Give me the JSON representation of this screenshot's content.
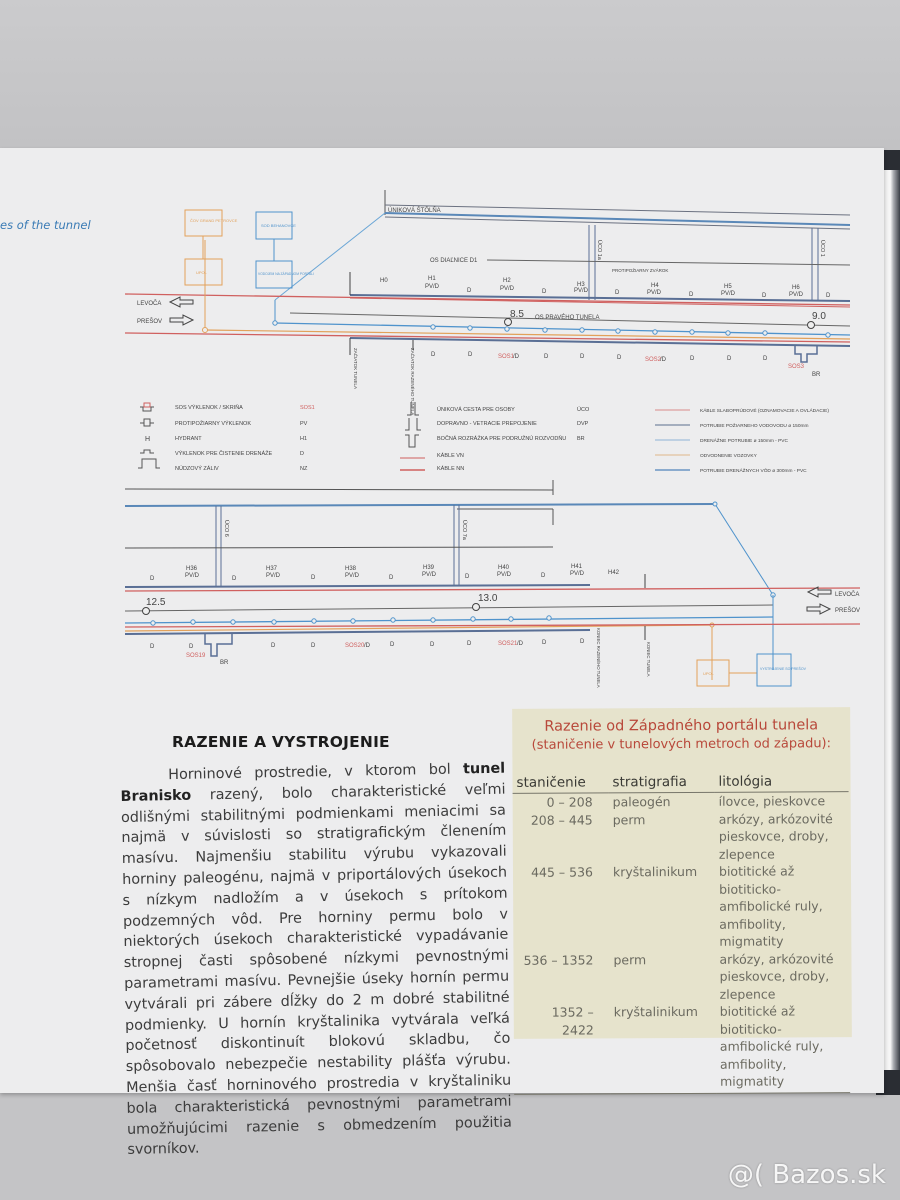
{
  "running_header": "es of the tunnel",
  "diagram": {
    "top": {
      "escape_gallery": "ÚNIKOVÁ ŠTÔLŇA",
      "motorway_axis": "OS DIAĽNICE D1",
      "right_tube_axis": "OS PRAVÉHO TUNELA",
      "fire_niche_note": "PROTIPOŽIARNY ZVÁROK",
      "cov_box": "ČOV GRAND PETROVCE",
      "upol_box": "UPOL",
      "sod_box": "SOD BEHANOVCE",
      "reservoir_box": "VODOJEM NA ZÁPADNOM PORTÁLI",
      "start_tunnel": "ZAČIATOK TUNELA",
      "start_bored_tunnel": "ZAČIATOK RAZENÉHO TUNELA",
      "levoca": "LEVOČA",
      "presov": "PREŠOV",
      "km_a": "8.5",
      "km_b": "9.0",
      "uco_1a": "ÚCO 1a",
      "uco_1": "ÚCO 1",
      "hydrants": [
        "H0",
        "H1",
        "H2",
        "H3",
        "H4",
        "H5",
        "H6"
      ],
      "pvd": "PV/D",
      "d": "D",
      "sos": [
        "SOS1",
        "SOS2",
        "SOS3"
      ],
      "sos_suffix": "/D",
      "br": "BR"
    },
    "legend": {
      "col1": [
        {
          "icon": "sos-niche-icon",
          "label": "SOS VÝKLENOK / SKRIŇA",
          "code": "SOS1"
        },
        {
          "icon": "fire-niche-icon",
          "label": "PROTIPOŽIARNY VÝKLENOK",
          "code": "PV"
        },
        {
          "icon": "hydrant-icon",
          "label": "HYDRANT",
          "code": "H1",
          "glyph": "H"
        },
        {
          "icon": "drainage-niche-icon",
          "label": "VÝKLENOK PRE ČISTENIE DRENÁŽE",
          "code": "D"
        },
        {
          "icon": "emergency-bay-icon",
          "label": "NÚDZOVÝ ZÁLIV",
          "code": "NZ"
        }
      ],
      "col2": [
        {
          "icon": "escape-route-icon",
          "label": "ÚNIKOVÁ CESTA PRE OSOBY",
          "code": "ÚCO"
        },
        {
          "icon": "traffic-connection-icon",
          "label": "DOPRAVNO - VETRACIE PREPOJENIE",
          "code": "DVP"
        },
        {
          "icon": "side-branch-icon",
          "label": "BOČNÁ ROZRÁŽKA PRE PODRUŽNÚ ROZVODŇU",
          "code": "BR"
        },
        {
          "icon": "line-red-icon",
          "label": "KÁBLE VN",
          "code": ""
        },
        {
          "icon": "line-red-icon",
          "label": "KÁBLE NN",
          "code": ""
        }
      ],
      "col3": [
        {
          "label": "KÁBLE SLABOPRÚDOVÉ (OZNAMOVACIE A OVLÁDACIE)",
          "color": "#d98a8a"
        },
        {
          "label": "POTRUBIE POŽIARNEHO VODOVODU ø 150mm",
          "color": "#5b6f8f"
        },
        {
          "label": "DRENÁŽNE POTRUBIE ø 150mm - PVC",
          "color": "#8fb3d6"
        },
        {
          "label": "ODVODNENIE VOZOVKY",
          "color": "#e0b88a"
        },
        {
          "label": "POTRUBIE DRENÁŽNYCH VÔD ø 300mm - PVC",
          "color": "#6b95c4"
        }
      ]
    },
    "bottom": {
      "km_a": "12.5",
      "km_b": "13.0",
      "uco_6": "ÚCO 6",
      "uco_7a": "ÚCO 7a",
      "hydrants": [
        "H36",
        "H37",
        "H38",
        "H39",
        "H40",
        "H41",
        "H42"
      ],
      "sos": [
        "SOS19",
        "SOS20",
        "SOS21"
      ],
      "end_bored_tunnel": "KONIEC RAZENÉHO TUNELA",
      "end_tunnel": "KONIEC TUNELA",
      "upol_box": "UPOL",
      "sod_box": "VYSTROJENIE SO PREŠOV",
      "levoca": "LEVOČA",
      "presov": "PREŠOV"
    },
    "colors": {
      "red": "#d0605f",
      "blue": "#4f93cc",
      "orange": "#e2a15a",
      "gray": "#5a6070"
    }
  },
  "article": {
    "heading": "RAZENIE A VYSTROJENIE",
    "p1_start": "Horninové prostredie, v ktorom bol ",
    "p1_bold": "tunel Branisko",
    "p1_rest": " razený, bolo charakteristické veľmi odlišnými stabilitnými podmienkami meniacimi sa najmä v súvislosti so stratigrafickým členením masívu. Najmenšiu stabilitu výrubu vykazovali horniny paleogénu, najmä v priportálových úsekoch s nízkym nadložím a v úsekoch s prítokom podzemných vôd. Pre horniny permu bolo v niektorých úsekoch charakteristické vypadávanie stropnej časti spôsobené nízkymi pevnostnými parametrami masívu. Pevnejšie úseky hornín permu vytvárali pri zábere dĺžky do 2 m dobré stabilitné podmienky. U hornín kryštalinika vytvárala veľká početnosť diskontinuít blokovú skladbu, čo spôsobovalo nebezpečie nestability plášťa výrubu. Menšia časť horninového prostredia v kryštaliniku bola charakteristická pevnostnými parametrami umožňujúcimi razenie s obmedzením použitia svorníkov."
  },
  "sidebox": {
    "title": "Razenie od Západného portálu tunela",
    "subtitle": "(staničenie v tunelových metroch od západu):",
    "columns": [
      "staničenie",
      "stratigrafia",
      "litológia"
    ],
    "rows": [
      [
        "0 – 208",
        "paleogén",
        "ílovce, pieskovce"
      ],
      [
        "208 – 445",
        "perm",
        "arkózy, arkózovité pieskovce, droby, zlepence"
      ],
      [
        "445 – 536",
        "kryštalinikum",
        "biotitické až biotiticko-amfibolické ruly, amfibolity, migmatity"
      ],
      [
        "536 – 1352",
        "perm",
        "arkózy, arkózovité pieskovce, droby, zlepence"
      ],
      [
        "1352 – 2422",
        "kryštalinikum",
        "biotitické až biotiticko-amfibolické ruly, amfibolity, migmatity"
      ]
    ]
  },
  "watermark": "@( Bazos.sk"
}
